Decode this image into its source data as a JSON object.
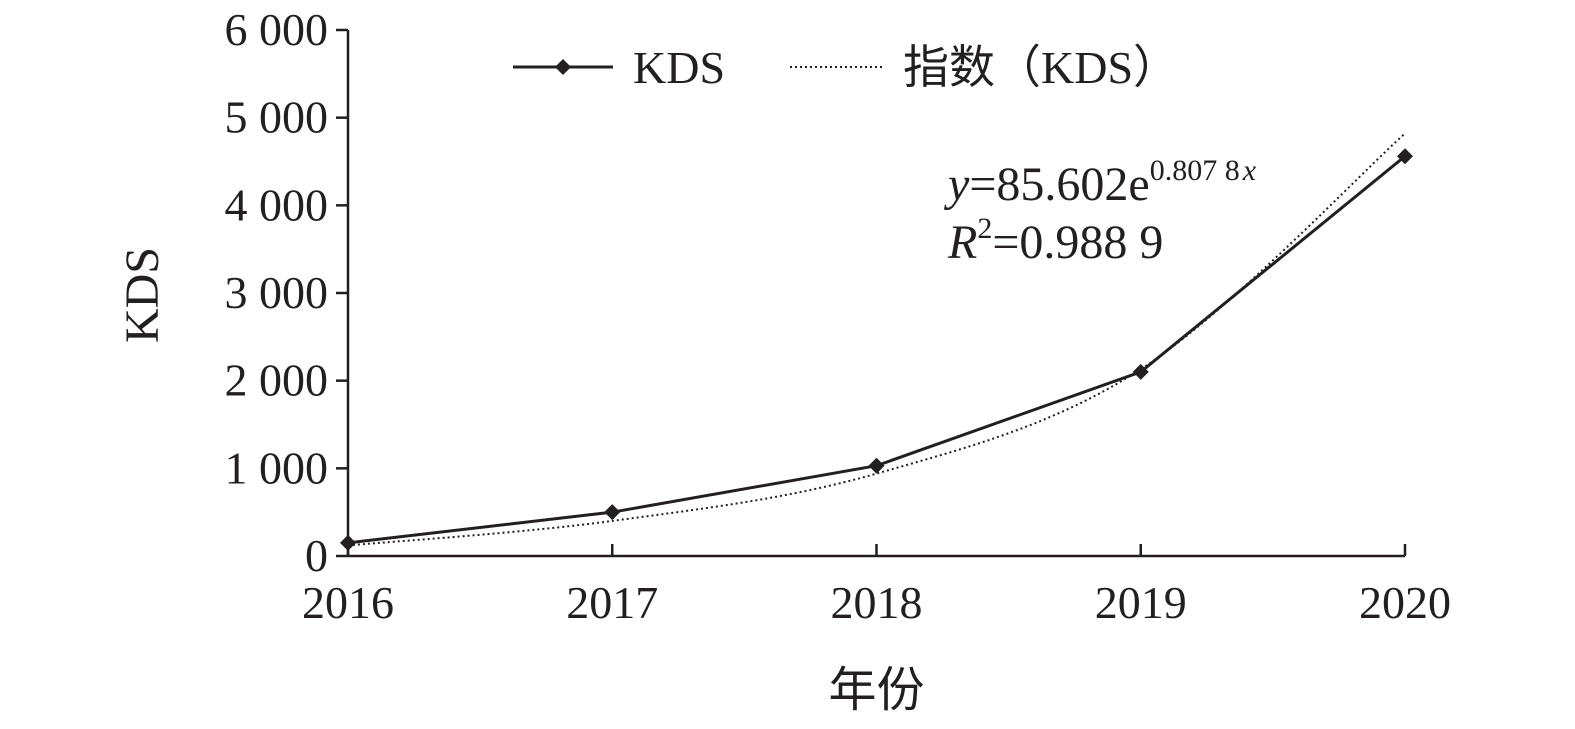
{
  "chart_data": {
    "type": "line",
    "x": [
      "2016",
      "2017",
      "2018",
      "2019",
      "2020"
    ],
    "series": [
      {
        "name": "KDS",
        "values": [
          150,
          500,
          1030,
          2100,
          4560
        ],
        "style": "solid",
        "marker": "diamond",
        "color": "#231f20"
      },
      {
        "name": "指数（KDS）",
        "values": [
          120,
          400,
          940,
          2130,
          4820
        ],
        "style": "dotted",
        "color": "#231f20"
      }
    ],
    "xlabel": "年份",
    "ylabel": "KDS",
    "ylim": [
      0,
      6000
    ],
    "yticks": [
      0,
      1000,
      2000,
      3000,
      4000,
      5000,
      6000
    ],
    "ytick_labels": [
      "0",
      "1 000",
      "2 000",
      "3 000",
      "4 000",
      "5 000",
      "6 000"
    ],
    "grid": false,
    "legend": "top-center",
    "annotations": {
      "equation_prefix": "y",
      "equation_body": "=85.602e",
      "equation_exponent_num": "0.807 8",
      "equation_exponent_var": "x",
      "r2_var": "R",
      "r2_sup": "2",
      "r2_body": "=0.988 9"
    }
  }
}
